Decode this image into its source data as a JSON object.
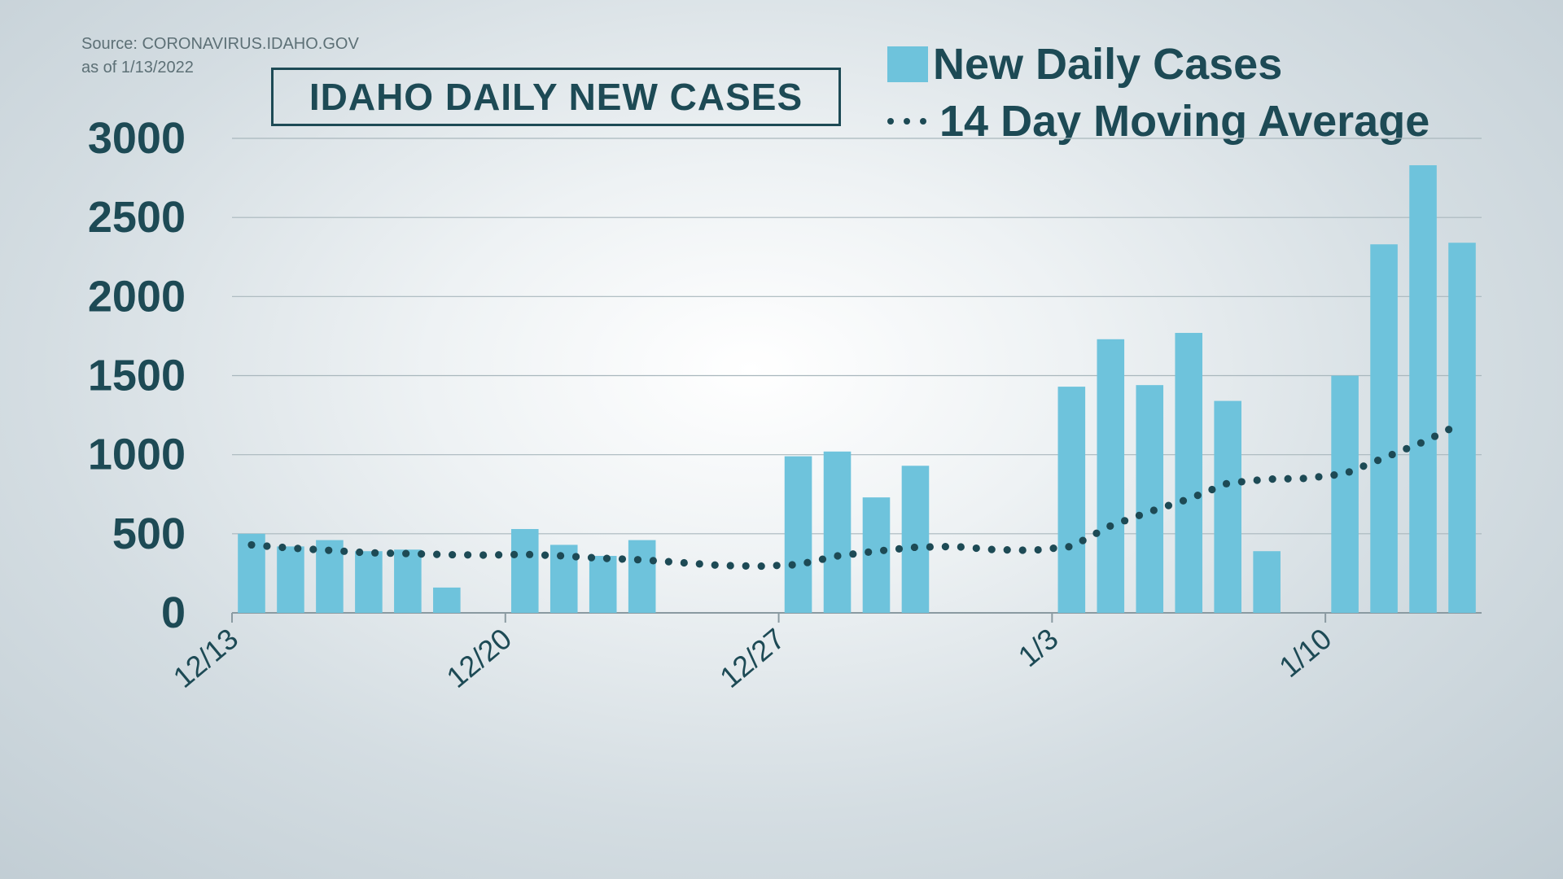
{
  "source": {
    "line1": "Source: CORONAVIRUS.IDAHO.GOV",
    "line2": "as of 1/13/2022"
  },
  "colors": {
    "bar": "#6ec3dc",
    "line": "#1d4a55",
    "text": "#1d4a55",
    "grid": "#a9b7bd"
  },
  "chart_data": {
    "type": "bar",
    "title": "IDAHO DAILY NEW CASES",
    "xlabel": "",
    "ylabel": "",
    "ylim": [
      0,
      3000
    ],
    "yticks": [
      "0",
      "500",
      "1000",
      "1500",
      "2000",
      "2500",
      "3000"
    ],
    "xtick_labels": [
      "12/13",
      "12/20",
      "12/27",
      "1/3",
      "1/10"
    ],
    "legend_position": "top-right",
    "grid": true,
    "categories": [
      "12/13",
      "12/14",
      "12/15",
      "12/16",
      "12/17",
      "12/18",
      "12/19",
      "12/20",
      "12/21",
      "12/22",
      "12/23",
      "12/24",
      "12/25",
      "12/26",
      "12/27",
      "12/28",
      "12/29",
      "12/30",
      "12/31",
      "1/1",
      "1/2",
      "1/3",
      "1/4",
      "1/5",
      "1/6",
      "1/7",
      "1/8",
      "1/9",
      "1/10",
      "1/11",
      "1/12",
      "1/13"
    ],
    "series": [
      {
        "name": "New Daily Cases",
        "kind": "bar",
        "values": [
          500,
          420,
          460,
          390,
          400,
          160,
          null,
          530,
          430,
          360,
          460,
          null,
          null,
          null,
          990,
          1020,
          730,
          930,
          null,
          null,
          null,
          1430,
          1730,
          1440,
          1770,
          1340,
          390,
          null,
          1500,
          2330,
          2830,
          2340
        ]
      },
      {
        "name": "14 Day Moving Average",
        "kind": "dotted-line",
        "values": [
          430,
          410,
          395,
          380,
          375,
          368,
          365,
          370,
          360,
          345,
          335,
          318,
          300,
          295,
          305,
          360,
          390,
          415,
          420,
          400,
          395,
          420,
          550,
          640,
          720,
          820,
          845,
          850,
          880,
          980,
          1080,
          1200
        ]
      }
    ]
  }
}
